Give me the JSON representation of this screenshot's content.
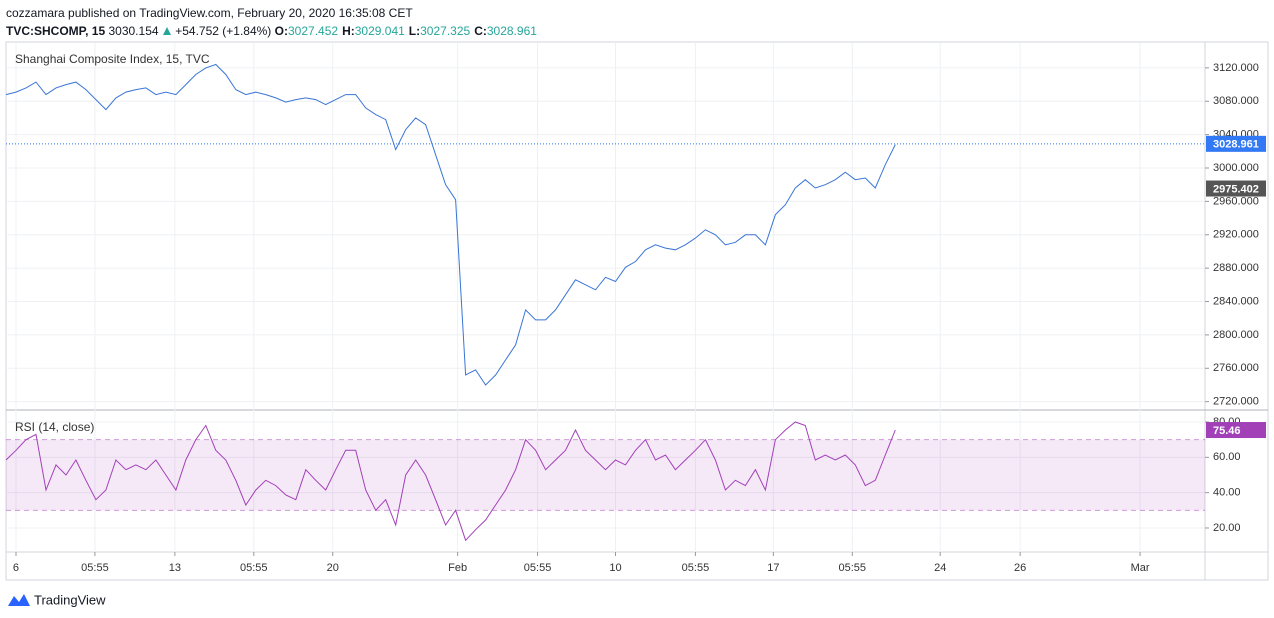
{
  "header": {
    "publisher": "cozzamara published on TradingView.com, February 20, 2020 16:35:08 CET",
    "symbol": "TVC:SHCOMP, 15",
    "price": 3030.154,
    "change": "+54.752 (+1.84%)",
    "ohlc": [
      {
        "label": "O:",
        "value": 3027.452
      },
      {
        "label": "H:",
        "value": 3029.041
      },
      {
        "label": "L:",
        "value": 3027.325
      },
      {
        "label": "C:",
        "value": 3028.961
      }
    ]
  },
  "chart_data": [
    {
      "type": "line",
      "title": "Shanghai Composite Index, 15, TVC",
      "color": "#3a75d6",
      "values": [
        3088,
        3091,
        3096,
        3103,
        3088,
        3096,
        3100,
        3103,
        3094,
        3082,
        3070,
        3084,
        3091,
        3094,
        3096,
        3088,
        3091,
        3088,
        3100,
        3112,
        3120,
        3124,
        3112,
        3094,
        3088,
        3091,
        3088,
        3084,
        3079,
        3082,
        3084,
        3082,
        3076,
        3082,
        3088,
        3088,
        3072,
        3064,
        3058,
        3022,
        3046,
        3060,
        3052,
        3016,
        2980,
        2962,
        2752,
        2758,
        2740,
        2752,
        2770,
        2788,
        2830,
        2818,
        2818,
        2830,
        2848,
        2866,
        2860,
        2854,
        2869,
        2864,
        2881,
        2888,
        2902,
        2908,
        2904,
        2902,
        2908,
        2916,
        2926,
        2920,
        2908,
        2911,
        2920,
        2920,
        2908,
        2944,
        2956,
        2976,
        2986,
        2976,
        2980,
        2986,
        2995,
        2986,
        2988,
        2976,
        3004,
        3028
      ],
      "ylim": [
        2710,
        3151
      ],
      "yticks": [
        {
          "value": 2720,
          "label": "2720.000"
        },
        {
          "value": 2760,
          "label": "2760.000"
        },
        {
          "value": 2800,
          "label": "2800.000"
        },
        {
          "value": 2840,
          "label": "2840.000"
        },
        {
          "value": 2880,
          "label": "2880.000"
        },
        {
          "value": 2920,
          "label": "2920.000"
        },
        {
          "value": 2960,
          "label": "2960.000"
        },
        {
          "value": 3000,
          "label": "3000.000"
        },
        {
          "value": 3040,
          "label": "3040.000"
        },
        {
          "value": 3080,
          "label": "3080.000"
        },
        {
          "value": 3120,
          "label": "3120.000"
        }
      ],
      "xlim": [
        0,
        120
      ],
      "xticks": [
        {
          "value": 1.0,
          "label": "6"
        },
        {
          "value": 8.9,
          "label": "05:55"
        },
        {
          "value": 16.9,
          "label": "13"
        },
        {
          "value": 24.8,
          "label": "05:55"
        },
        {
          "value": 32.7,
          "label": "20"
        },
        {
          "value": 45.2,
          "label": "Feb"
        },
        {
          "value": 53.2,
          "label": "05:55"
        },
        {
          "value": 61.0,
          "label": "10"
        },
        {
          "value": 69.0,
          "label": "05:55"
        },
        {
          "value": 76.8,
          "label": "17"
        },
        {
          "value": 84.7,
          "label": "05:55"
        },
        {
          "value": 93.5,
          "label": "24"
        },
        {
          "value": 101.5,
          "label": "26"
        },
        {
          "value": 113.5,
          "label": "Mar"
        }
      ],
      "last_price": 3028.961,
      "last_price_color": "#3179f5",
      "prev_close": 2975.402,
      "prev_close_color": "#555555",
      "grid": true
    },
    {
      "type": "rsi",
      "title": "RSI (14, close)",
      "color": "#a240b8",
      "values": [
        58.5,
        64,
        70,
        73,
        41.5,
        55.7,
        50,
        58.5,
        47,
        36,
        41.5,
        58.5,
        53,
        55.7,
        53,
        58.5,
        50,
        41.5,
        58.5,
        70,
        78,
        64,
        58.5,
        47,
        33,
        41.5,
        47,
        44,
        38.7,
        36,
        53,
        47,
        41.5,
        53,
        64,
        64,
        41.5,
        30,
        36,
        21.7,
        50,
        58.5,
        50,
        36,
        21.7,
        30,
        13,
        19,
        24.5,
        33,
        41.5,
        53,
        70,
        64,
        53,
        58.5,
        64,
        75.5,
        64,
        58.5,
        53,
        58.5,
        55.7,
        64,
        70,
        58.5,
        61.3,
        53,
        58.5,
        64,
        70,
        58.5,
        41.5,
        47,
        44,
        53,
        41.5,
        70,
        75.5,
        80,
        78,
        58.5,
        61.3,
        58.5,
        61.3,
        55.7,
        44,
        47,
        61.3,
        75.5
      ],
      "ylim": [
        6.4,
        86.8
      ],
      "yticks": [
        {
          "value": 20,
          "label": "20.00"
        },
        {
          "value": 40,
          "label": "40.00"
        },
        {
          "value": 60,
          "label": "60.00"
        },
        {
          "value": 80,
          "label": "80.00"
        }
      ],
      "bands": [
        30,
        70
      ],
      "band_color": "#9c27b0",
      "last_value": 75.46,
      "grid": true
    }
  ],
  "footer": {
    "brand": "TradingView"
  }
}
